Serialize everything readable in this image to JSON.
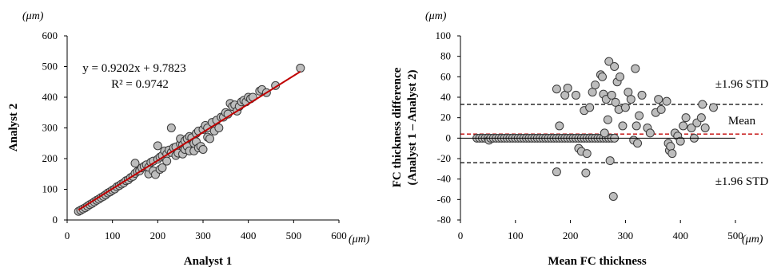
{
  "chart_data": [
    {
      "type": "scatter",
      "xlabel": "Analyst 1",
      "ylabel": "Analyst 2",
      "x_unit": "(μm)",
      "y_unit": "(μm)",
      "xlim": [
        0,
        600
      ],
      "ylim": [
        0,
        600
      ],
      "xticks": [
        "0",
        "100",
        "200",
        "300",
        "400",
        "500",
        "600"
      ],
      "yticks": [
        "0",
        "100",
        "200",
        "300",
        "400",
        "500",
        "600"
      ],
      "grid": false,
      "equation": "y = 0.9202x + 9.7823",
      "r_squared": "R² = 0.9742",
      "fit": {
        "slope": 0.9202,
        "intercept": 9.7823,
        "x_range": [
          25,
          515
        ],
        "color": "#c00000"
      },
      "points": [
        [
          25,
          28
        ],
        [
          30,
          32
        ],
        [
          35,
          36
        ],
        [
          40,
          40
        ],
        [
          45,
          45
        ],
        [
          50,
          50
        ],
        [
          55,
          54
        ],
        [
          60,
          59
        ],
        [
          65,
          64
        ],
        [
          70,
          68
        ],
        [
          75,
          73
        ],
        [
          80,
          77
        ],
        [
          85,
          82
        ],
        [
          90,
          88
        ],
        [
          95,
          92
        ],
        [
          100,
          97
        ],
        [
          105,
          101
        ],
        [
          110,
          108
        ],
        [
          115,
          112
        ],
        [
          120,
          117
        ],
        [
          125,
          121
        ],
        [
          130,
          128
        ],
        [
          135,
          131
        ],
        [
          140,
          138
        ],
        [
          145,
          142
        ],
        [
          150,
          152
        ],
        [
          150,
          185
        ],
        [
          155,
          158
        ],
        [
          160,
          160
        ],
        [
          165,
          170
        ],
        [
          170,
          175
        ],
        [
          175,
          180
        ],
        [
          180,
          150
        ],
        [
          180,
          172
        ],
        [
          185,
          188
        ],
        [
          190,
          160
        ],
        [
          190,
          192
        ],
        [
          195,
          148
        ],
        [
          200,
          198
        ],
        [
          200,
          242
        ],
        [
          205,
          165
        ],
        [
          205,
          205
        ],
        [
          210,
          210
        ],
        [
          210,
          170
        ],
        [
          215,
          225
        ],
        [
          220,
          215
        ],
        [
          220,
          192
        ],
        [
          225,
          228
        ],
        [
          230,
          220
        ],
        [
          230,
          300
        ],
        [
          235,
          235
        ],
        [
          240,
          238
        ],
        [
          240,
          210
        ],
        [
          245,
          218
        ],
        [
          250,
          248
        ],
        [
          250,
          265
        ],
        [
          255,
          245
        ],
        [
          255,
          215
        ],
        [
          260,
          230
        ],
        [
          260,
          258
        ],
        [
          265,
          265
        ],
        [
          265,
          240
        ],
        [
          270,
          272
        ],
        [
          270,
          225
        ],
        [
          275,
          268
        ],
        [
          280,
          225
        ],
        [
          280,
          250
        ],
        [
          285,
          282
        ],
        [
          285,
          255
        ],
        [
          290,
          235
        ],
        [
          290,
          290
        ],
        [
          295,
          240
        ],
        [
          300,
          295
        ],
        [
          300,
          230
        ],
        [
          305,
          308
        ],
        [
          310,
          270
        ],
        [
          310,
          300
        ],
        [
          315,
          265
        ],
        [
          320,
          318
        ],
        [
          325,
          290
        ],
        [
          330,
          325
        ],
        [
          335,
          300
        ],
        [
          340,
          335
        ],
        [
          345,
          335
        ],
        [
          350,
          350
        ],
        [
          355,
          345
        ],
        [
          360,
          380
        ],
        [
          365,
          370
        ],
        [
          370,
          375
        ],
        [
          375,
          355
        ],
        [
          380,
          370
        ],
        [
          385,
          385
        ],
        [
          390,
          390
        ],
        [
          395,
          385
        ],
        [
          400,
          400
        ],
        [
          405,
          395
        ],
        [
          410,
          400
        ],
        [
          425,
          420
        ],
        [
          430,
          425
        ],
        [
          440,
          415
        ],
        [
          460,
          438
        ],
        [
          515,
          495
        ]
      ]
    },
    {
      "type": "scatter",
      "xlabel": "Mean FC thickness",
      "ylabel_line1": "FC thickness difference",
      "ylabel_line2": "(Analyst 1 – Analyst 2)",
      "x_unit": "(μm)",
      "y_unit": "(μm)",
      "xlim": [
        0,
        500
      ],
      "ylim": [
        -80,
        100
      ],
      "xticks": [
        "0",
        "100",
        "200",
        "300",
        "400",
        "500"
      ],
      "yticks": [
        "-80",
        "-60",
        "-40",
        "-20",
        "0",
        "20",
        "40",
        "60",
        "80",
        "100"
      ],
      "grid": false,
      "upper_limit": 33,
      "mean": 4,
      "lower_limit": -24,
      "upper_label": "±1.96 STD",
      "mean_label": "Mean",
      "lower_label": "±1.96 STD",
      "points": [
        [
          30,
          0
        ],
        [
          35,
          0
        ],
        [
          40,
          0
        ],
        [
          45,
          0
        ],
        [
          50,
          0
        ],
        [
          52,
          -2
        ],
        [
          55,
          0
        ],
        [
          60,
          0
        ],
        [
          65,
          0
        ],
        [
          70,
          0
        ],
        [
          75,
          0
        ],
        [
          80,
          0
        ],
        [
          85,
          0
        ],
        [
          90,
          0
        ],
        [
          95,
          0
        ],
        [
          100,
          0
        ],
        [
          105,
          0
        ],
        [
          110,
          0
        ],
        [
          115,
          0
        ],
        [
          120,
          0
        ],
        [
          125,
          0
        ],
        [
          130,
          0
        ],
        [
          135,
          0
        ],
        [
          140,
          0
        ],
        [
          145,
          0
        ],
        [
          150,
          0
        ],
        [
          155,
          0
        ],
        [
          160,
          0
        ],
        [
          165,
          0
        ],
        [
          170,
          0
        ],
        [
          175,
          0
        ],
        [
          180,
          0
        ],
        [
          185,
          0
        ],
        [
          190,
          0
        ],
        [
          195,
          0
        ],
        [
          200,
          0
        ],
        [
          205,
          0
        ],
        [
          210,
          0
        ],
        [
          215,
          0
        ],
        [
          220,
          0
        ],
        [
          225,
          0
        ],
        [
          230,
          0
        ],
        [
          235,
          0
        ],
        [
          240,
          0
        ],
        [
          245,
          0
        ],
        [
          250,
          0
        ],
        [
          255,
          0
        ],
        [
          260,
          0
        ],
        [
          265,
          0
        ],
        [
          270,
          0
        ],
        [
          275,
          0
        ],
        [
          280,
          0
        ],
        [
          175,
          -33
        ],
        [
          175,
          48
        ],
        [
          180,
          12
        ],
        [
          190,
          42
        ],
        [
          195,
          49
        ],
        [
          210,
          42
        ],
        [
          215,
          -10
        ],
        [
          220,
          -13
        ],
        [
          225,
          27
        ],
        [
          228,
          -34
        ],
        [
          230,
          -15
        ],
        [
          235,
          30
        ],
        [
          240,
          45
        ],
        [
          245,
          52
        ],
        [
          255,
          62
        ],
        [
          258,
          60
        ],
        [
          260,
          43
        ],
        [
          262,
          5
        ],
        [
          265,
          38
        ],
        [
          268,
          18
        ],
        [
          270,
          75
        ],
        [
          272,
          -22
        ],
        [
          275,
          42
        ],
        [
          278,
          -57
        ],
        [
          280,
          70
        ],
        [
          282,
          35
        ],
        [
          285,
          55
        ],
        [
          288,
          28
        ],
        [
          290,
          60
        ],
        [
          295,
          12
        ],
        [
          300,
          30
        ],
        [
          305,
          45
        ],
        [
          310,
          38
        ],
        [
          315,
          -2
        ],
        [
          318,
          68
        ],
        [
          320,
          12
        ],
        [
          322,
          -5
        ],
        [
          325,
          22
        ],
        [
          330,
          42
        ],
        [
          340,
          10
        ],
        [
          345,
          5
        ],
        [
          355,
          25
        ],
        [
          360,
          38
        ],
        [
          365,
          28
        ],
        [
          375,
          36
        ],
        [
          378,
          -5
        ],
        [
          380,
          -12
        ],
        [
          382,
          -8
        ],
        [
          385,
          -15
        ],
        [
          390,
          5
        ],
        [
          395,
          2
        ],
        [
          400,
          -3
        ],
        [
          405,
          12
        ],
        [
          410,
          20
        ],
        [
          420,
          10
        ],
        [
          425,
          0
        ],
        [
          430,
          15
        ],
        [
          438,
          20
        ],
        [
          440,
          33
        ],
        [
          445,
          10
        ],
        [
          460,
          30
        ]
      ]
    }
  ]
}
